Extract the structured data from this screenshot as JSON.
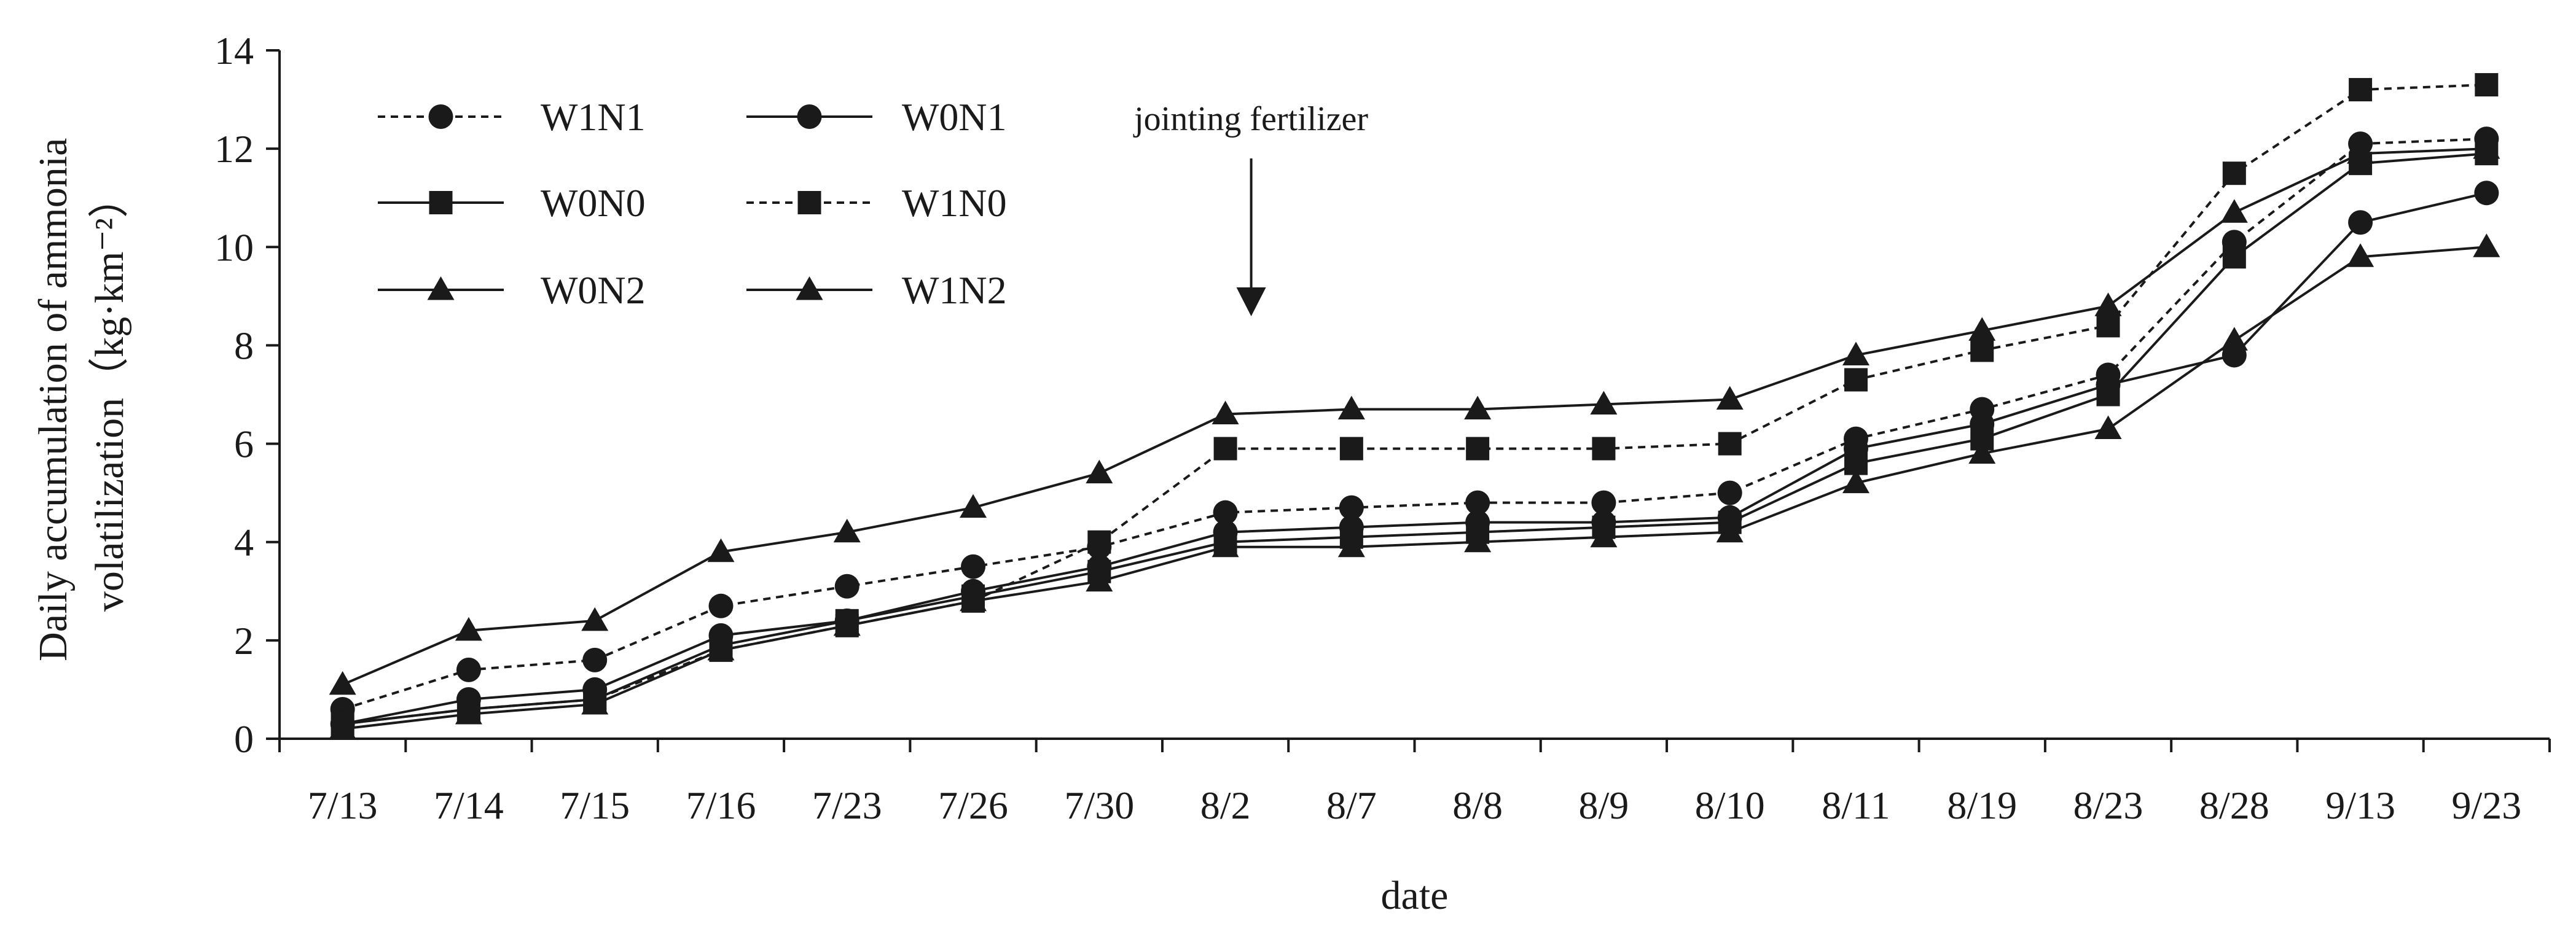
{
  "chart_data": {
    "type": "line",
    "title": "",
    "xlabel": "date",
    "ylabel_line1": "Daily accumulation of ammonia",
    "ylabel_line2": "volatilization（kg·km⁻²）",
    "ylim": [
      0,
      14
    ],
    "yticks": [
      0,
      2,
      4,
      6,
      8,
      10,
      12,
      14
    ],
    "grid": false,
    "legend_position": "top-left",
    "categories": [
      "7/13",
      "7/14",
      "7/15",
      "7/16",
      "7/23",
      "7/26",
      "7/30",
      "8/2",
      "8/7",
      "8/8",
      "8/9",
      "8/10",
      "8/11",
      "8/19",
      "8/23",
      "8/28",
      "9/13",
      "9/23"
    ],
    "annotation": {
      "text": "jointing fertilizer",
      "category": "8/2"
    },
    "series": [
      {
        "name": "W1N1",
        "marker": "circle",
        "dash": true,
        "values": [
          0.6,
          1.4,
          1.6,
          2.7,
          3.1,
          3.5,
          3.9,
          4.6,
          4.7,
          4.8,
          4.8,
          5.0,
          6.1,
          6.7,
          7.4,
          10.1,
          12.1,
          12.2
        ]
      },
      {
        "name": "W0N1",
        "marker": "circle",
        "dash": false,
        "values": [
          0.3,
          0.8,
          1.0,
          2.1,
          2.4,
          3.0,
          3.5,
          4.2,
          4.3,
          4.4,
          4.4,
          4.5,
          5.9,
          6.4,
          7.2,
          7.8,
          10.5,
          11.1
        ]
      },
      {
        "name": "W0N0",
        "marker": "square",
        "dash": false,
        "values": [
          0.3,
          0.6,
          0.8,
          1.9,
          2.4,
          2.9,
          3.4,
          4.0,
          4.1,
          4.2,
          4.3,
          4.4,
          5.6,
          6.1,
          7.0,
          9.8,
          11.7,
          11.9
        ]
      },
      {
        "name": "W1N0",
        "marker": "square",
        "dash": true,
        "values": [
          0.3,
          0.6,
          0.8,
          1.8,
          2.3,
          2.8,
          4.0,
          5.9,
          5.9,
          5.9,
          5.9,
          6.0,
          7.3,
          7.9,
          8.4,
          11.5,
          13.2,
          13.3
        ]
      },
      {
        "name": "W0N2",
        "marker": "triangle",
        "dash": false,
        "values": [
          0.2,
          0.5,
          0.7,
          1.8,
          2.3,
          2.8,
          3.2,
          3.9,
          3.9,
          4.0,
          4.1,
          4.2,
          5.2,
          5.8,
          6.3,
          8.1,
          9.8,
          10.0
        ]
      },
      {
        "name": "W1N2",
        "marker": "triangle",
        "dash": false,
        "values": [
          1.1,
          2.2,
          2.4,
          3.8,
          4.2,
          4.7,
          5.4,
          6.6,
          6.7,
          6.7,
          6.8,
          6.9,
          7.8,
          8.3,
          8.8,
          10.7,
          11.9,
          12.0
        ]
      }
    ]
  }
}
